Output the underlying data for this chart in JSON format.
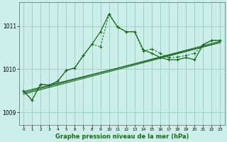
{
  "bg_color": "#cceee8",
  "grid_color": "#99ccbb",
  "line_color": "#1a6620",
  "title": "Graphe pression niveau de la mer (hPa)",
  "xlim": [
    -0.5,
    23.5
  ],
  "ylim": [
    1008.7,
    1011.55
  ],
  "yticks": [
    1009,
    1010,
    1011
  ],
  "xticks": [
    0,
    1,
    2,
    3,
    4,
    5,
    6,
    7,
    8,
    9,
    10,
    11,
    12,
    13,
    14,
    15,
    16,
    17,
    18,
    19,
    20,
    21,
    22,
    23
  ],
  "trend1_x": [
    0,
    23
  ],
  "trend1_y": [
    1009.48,
    1010.62
  ],
  "trend2_x": [
    0,
    23
  ],
  "trend2_y": [
    1009.42,
    1010.62
  ],
  "trend3_x": [
    0,
    23
  ],
  "trend3_y": [
    1009.45,
    1010.65
  ],
  "dotted_x": [
    0,
    1,
    2,
    3,
    4,
    5,
    6,
    7,
    8,
    9,
    10,
    11,
    12,
    13,
    14,
    15,
    16,
    17,
    18,
    19,
    20,
    21,
    22,
    23
  ],
  "dotted_y": [
    1009.5,
    1009.28,
    1009.65,
    1009.63,
    1009.72,
    1009.97,
    1010.03,
    1010.32,
    1010.58,
    1010.52,
    1011.28,
    1010.98,
    1010.87,
    1010.87,
    1010.42,
    1010.47,
    1010.37,
    1010.27,
    1010.28,
    1010.32,
    1010.37,
    1010.57,
    1010.67,
    1010.67
  ],
  "solid_x": [
    0,
    1,
    2,
    3,
    4,
    5,
    6,
    7,
    8,
    9,
    10,
    11,
    12,
    13,
    14,
    15,
    16,
    17,
    18,
    19,
    20,
    21,
    22,
    23
  ],
  "solid_y": [
    1009.5,
    1009.28,
    1009.65,
    1009.63,
    1009.72,
    1009.97,
    1010.03,
    1010.32,
    1010.58,
    1010.87,
    1011.28,
    1010.98,
    1010.87,
    1010.87,
    1010.45,
    1010.37,
    1010.27,
    1010.22,
    1010.22,
    1010.27,
    1010.22,
    1010.57,
    1010.67,
    1010.67
  ]
}
